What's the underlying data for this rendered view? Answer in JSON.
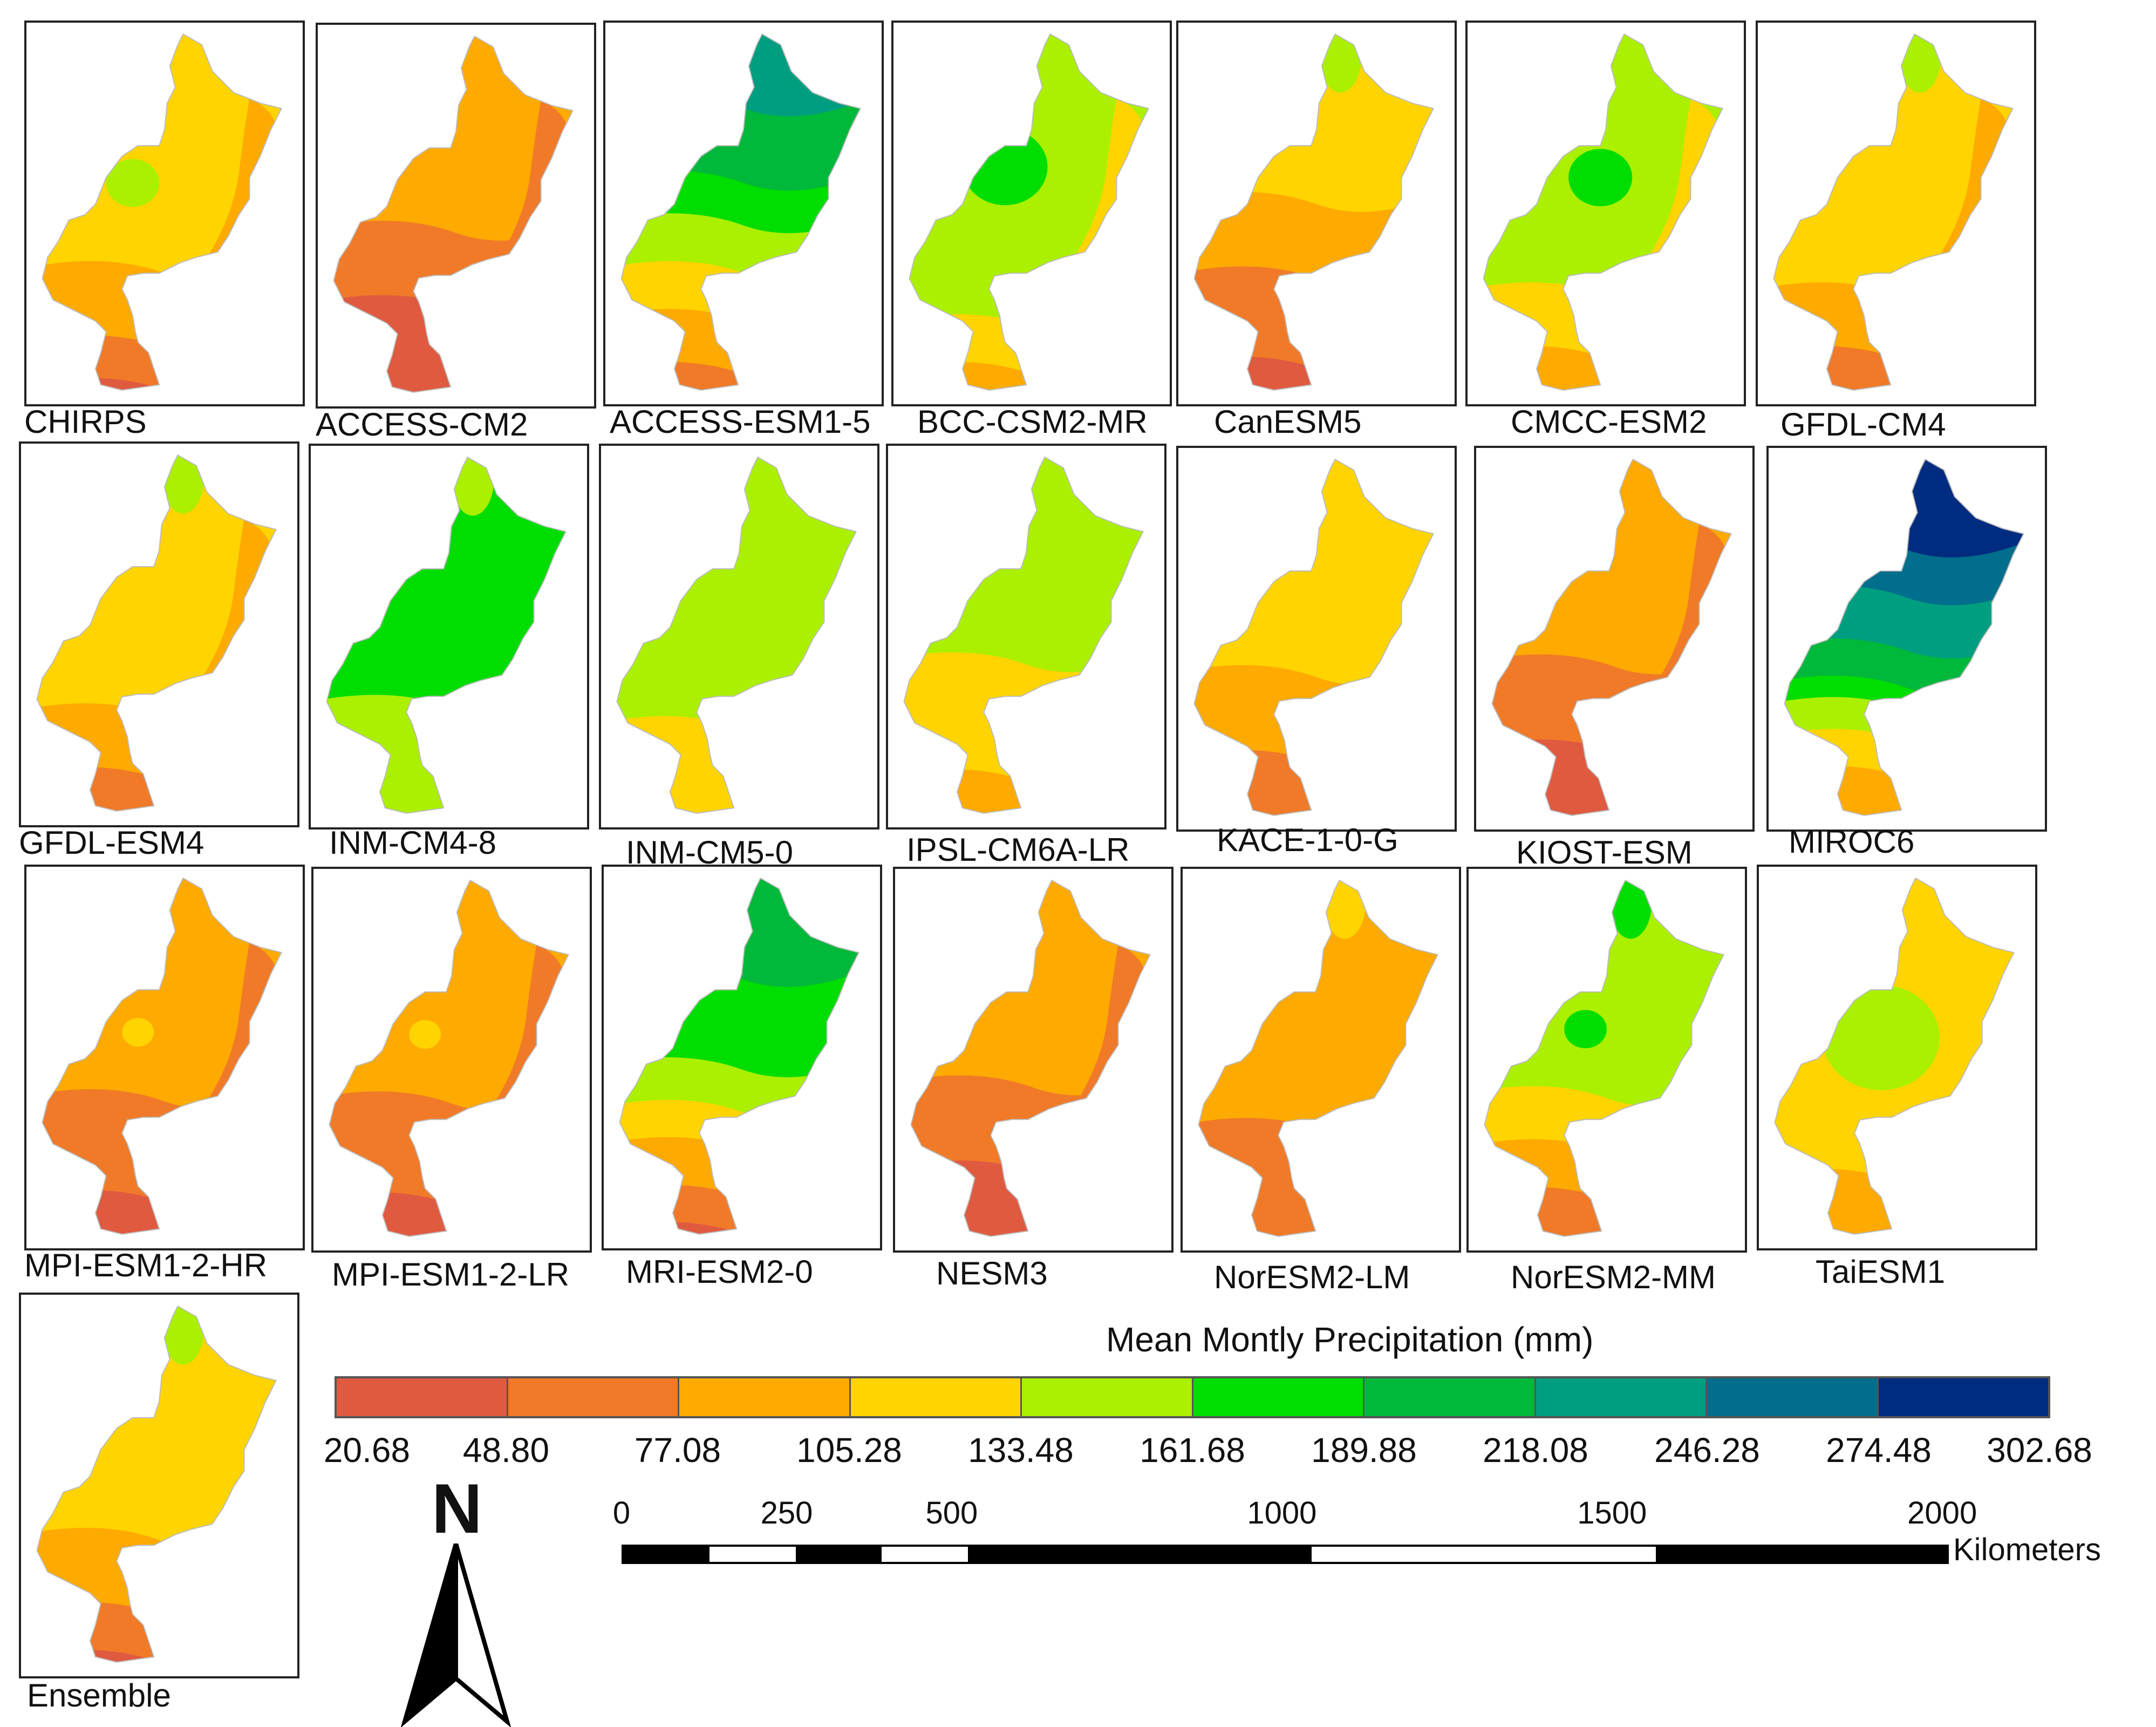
{
  "panels": [
    {
      "label": "CHIRPS",
      "pattern": "chirps"
    },
    {
      "label": "ACCESS-CM2",
      "pattern": "dry"
    },
    {
      "label": "ACCESS-ESM1-5",
      "pattern": "wetNorth"
    },
    {
      "label": "BCC-CSM2-MR",
      "pattern": "greenCentral"
    },
    {
      "label": "CanESM5",
      "pattern": "moderate"
    },
    {
      "label": "CMCC-ESM2",
      "pattern": "greenCentral2"
    },
    {
      "label": "GFDL-CM4",
      "pattern": "yellow"
    },
    {
      "label": "GFDL-ESM4",
      "pattern": "yellow"
    },
    {
      "label": "INM-CM4-8",
      "pattern": "green"
    },
    {
      "label": "INM-CM5-0",
      "pattern": "lime"
    },
    {
      "label": "IPSL-CM6A-LR",
      "pattern": "limeYellow"
    },
    {
      "label": "KACE-1-0-G",
      "pattern": "yellow2"
    },
    {
      "label": "KIOST-ESM",
      "pattern": "dry2"
    },
    {
      "label": "MIROC6",
      "pattern": "veryWet"
    },
    {
      "label": "MPI-ESM1-2-HR",
      "pattern": "dry3"
    },
    {
      "label": "MPI-ESM1-2-LR",
      "pattern": "dry3"
    },
    {
      "label": "MRI-ESM2-0",
      "pattern": "wetNorth2"
    },
    {
      "label": "NESM3",
      "pattern": "dry2"
    },
    {
      "label": "NorESM2-LM",
      "pattern": "moderate2"
    },
    {
      "label": "NorESM2-MM",
      "pattern": "greenNorth"
    },
    {
      "label": "TaiESM1",
      "pattern": "yellowLime"
    },
    {
      "label": "Ensemble",
      "pattern": "ensemble"
    }
  ],
  "legend": {
    "title": "Mean Montly Precipitation (mm)",
    "colors": [
      "#e05a40",
      "#f07a28",
      "#ffaa00",
      "#ffd400",
      "#aaf000",
      "#00dd00",
      "#00b83a",
      "#009e80",
      "#006e8c",
      "#002c80"
    ],
    "breaks": [
      "20.68",
      "48.80",
      "77.08",
      "105.28",
      "133.48",
      "161.68",
      "189.88",
      "218.08",
      "246.28",
      "274.48",
      "302.68"
    ]
  },
  "scale_bar": {
    "ticks": [
      "0",
      "250",
      "500",
      "1000",
      "1500",
      "2000"
    ],
    "unit": "Kilometers"
  },
  "north_label": "N"
}
